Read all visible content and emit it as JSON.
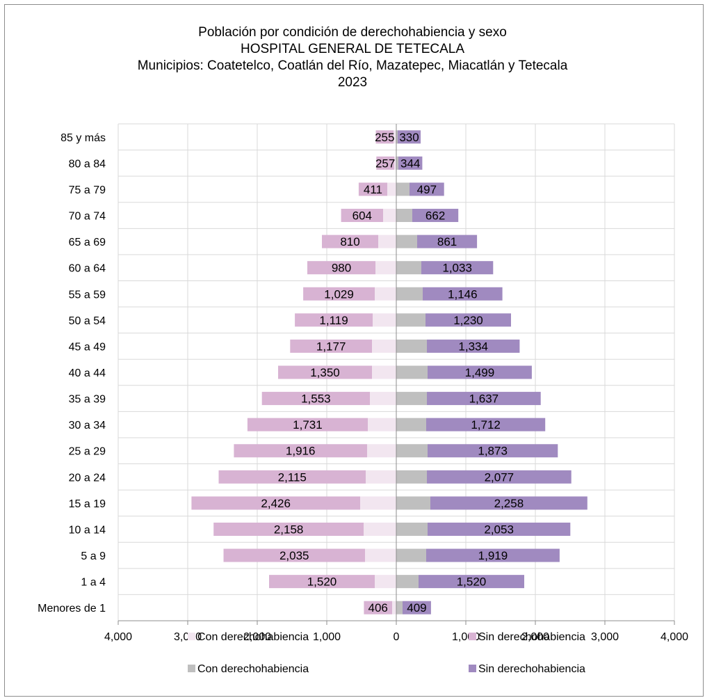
{
  "chart_data": {
    "type": "bar",
    "orientation": "horizontal",
    "subtype": "population-pyramid",
    "title": [
      "Población por condición de derechohabiencia y sexo",
      "HOSPITAL GENERAL DE TETECALA",
      "Municipios: Coatetelco, Coatlán del Río, Mazatepec, Miacatlán y Tetecala",
      "2023"
    ],
    "categories": [
      "85 y más",
      "80 a 84",
      "75 a 79",
      "70 a 74",
      "65 a 69",
      "60 a 64",
      "55 a 59",
      "50 a 54",
      "45 a 49",
      "40 a 44",
      "35 a 39",
      "30 a 34",
      "25 a 29",
      "20 a 24",
      "15 a 19",
      "10 a 14",
      "5 a 9",
      "1 a 4",
      "Menores de 1"
    ],
    "xlim": [
      -4000,
      4000
    ],
    "xticks": [
      -4000,
      -3000,
      -2000,
      -1000,
      0,
      1000,
      2000,
      3000,
      4000
    ],
    "xtick_labels": [
      "4,000",
      "3,000",
      "2,000",
      "1,000",
      "0",
      "1,000",
      "2,000",
      "3,000",
      "4,000"
    ],
    "grid": true,
    "series": [
      {
        "name": "Con derechohabiencia",
        "side": "left",
        "color": "#f2e6f0",
        "values": [
          40,
          30,
          130,
          190,
          260,
          300,
          310,
          340,
          350,
          350,
          380,
          410,
          420,
          440,
          520,
          470,
          450,
          310,
          60
        ]
      },
      {
        "name": "Sin derechohabiencia",
        "side": "left",
        "color": "#d8b3d3",
        "values": [
          255,
          257,
          411,
          604,
          810,
          980,
          1029,
          1119,
          1177,
          1350,
          1553,
          1731,
          1916,
          2115,
          2426,
          2158,
          2035,
          1520,
          406
        ],
        "labels": [
          "255",
          "257",
          "411",
          "604",
          "810",
          "980",
          "1,029",
          "1,119",
          "1,177",
          "1,350",
          "1,553",
          "1,731",
          "1,916",
          "2,115",
          "2,426",
          "2,158",
          "2,035",
          "1,520",
          "406"
        ]
      },
      {
        "name": "Con derechohabiencia",
        "side": "right",
        "color": "#bfbfbf",
        "values": [
          20,
          30,
          190,
          230,
          300,
          360,
          380,
          420,
          440,
          450,
          440,
          430,
          450,
          440,
          490,
          450,
          430,
          320,
          90
        ]
      },
      {
        "name": "Sin derechohabiencia",
        "side": "right",
        "color": "#a08ac0",
        "values": [
          330,
          344,
          497,
          662,
          861,
          1033,
          1146,
          1230,
          1334,
          1499,
          1637,
          1712,
          1873,
          2077,
          2258,
          2053,
          1919,
          1520,
          409
        ],
        "labels": [
          "330",
          "344",
          "497",
          "662",
          "861",
          "1,033",
          "1,146",
          "1,230",
          "1,334",
          "1,499",
          "1,637",
          "1,712",
          "1,873",
          "2,077",
          "2,258",
          "2,053",
          "1,919",
          "1,520",
          "409"
        ]
      }
    ],
    "legend": [
      {
        "label": "Con derechohabiencia",
        "color": "#f2e6f0"
      },
      {
        "label": "Sin derechohabiencia",
        "color": "#d8b3d3"
      },
      {
        "label": "Con derechohabiencia",
        "color": "#bfbfbf"
      },
      {
        "label": "Sin derechohabiencia",
        "color": "#a08ac0"
      }
    ],
    "legend_position": "bottom"
  }
}
